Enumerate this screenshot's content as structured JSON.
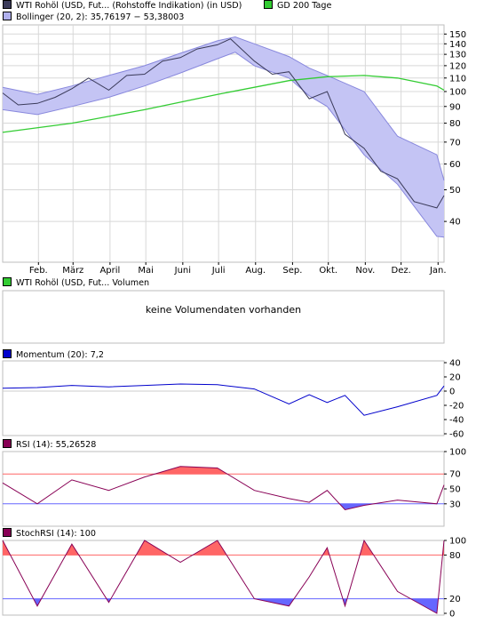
{
  "legends": {
    "price": "WTI Rohöl (USD, Fut... (Rohstoffe Indikation) (in USD)",
    "bollinger": "Bollinger (20, 2): 35,76197 − 53,38003",
    "gd200": "GD 200 Tage",
    "volume": "WTI Rohöl (USD, Fut... Volumen",
    "momentum": "Momentum (20): 7,2",
    "rsi": "RSI (14): 55,26528",
    "stochrsi": "StochRSI (14): 100"
  },
  "volume_message": "keine Volumendaten vorhanden",
  "colors": {
    "price": "#3b3b5a",
    "bollinger_fill": "#c4c4f4",
    "bollinger_line": "#8888dd",
    "gd200": "#33cc33",
    "momentum": "#0000cc",
    "oscillator": "#880055",
    "overbought": "#ff6666",
    "oversold": "#6666ff",
    "grid": "#d8d8d8"
  },
  "chart_data": [
    {
      "type": "line",
      "title": "WTI Rohöl (USD, Fut... (Rohstoffe Indikation) (in USD)",
      "y_scale": "log",
      "ylim": [
        30,
        160
      ],
      "x_months": [
        "Feb.",
        "März",
        "April",
        "Mai",
        "Juni",
        "Juli",
        "Aug.",
        "Sep.",
        "Okt.",
        "Nov.",
        "Dez.",
        "Jan."
      ],
      "y_ticks": [
        40,
        50,
        60,
        70,
        80,
        90,
        100,
        110,
        120,
        130,
        140,
        150
      ],
      "grid": true,
      "series": [
        {
          "name": "WTI Rohöl (USD, Fut... (Rohstoffe Indikation) (in USD)",
          "x": [
            "2008-01-02",
            "2008-01-15",
            "2008-01-31",
            "2008-02-15",
            "2008-02-29",
            "2008-03-14",
            "2008-03-31",
            "2008-04-15",
            "2008-04-30",
            "2008-05-15",
            "2008-05-30",
            "2008-06-13",
            "2008-06-30",
            "2008-07-11",
            "2008-07-31",
            "2008-08-15",
            "2008-08-29",
            "2008-09-15",
            "2008-09-30",
            "2008-10-15",
            "2008-10-31",
            "2008-11-14",
            "2008-11-28",
            "2008-12-12",
            "2008-12-31",
            "2009-01-06"
          ],
          "values": [
            99,
            91,
            92,
            96,
            102,
            110,
            101,
            112,
            113,
            124,
            127,
            135,
            139,
            145,
            124,
            113,
            115,
            95,
            100,
            74,
            67,
            57,
            54,
            46,
            44,
            48
          ]
        },
        {
          "name": "Bollinger upper",
          "x": [
            "2008-01-02",
            "2008-01-31",
            "2008-02-29",
            "2008-03-31",
            "2008-04-30",
            "2008-05-30",
            "2008-06-30",
            "2008-07-15",
            "2008-07-31",
            "2008-08-29",
            "2008-09-15",
            "2008-09-30",
            "2008-10-31",
            "2008-11-28",
            "2008-12-31",
            "2009-01-06"
          ],
          "values": [
            103,
            98,
            104,
            112,
            120,
            131,
            143,
            147,
            140,
            128,
            118,
            112,
            100,
            73,
            64,
            53.4
          ]
        },
        {
          "name": "Bollinger lower",
          "x": [
            "2008-01-02",
            "2008-01-31",
            "2008-02-29",
            "2008-03-31",
            "2008-04-30",
            "2008-05-30",
            "2008-06-30",
            "2008-07-15",
            "2008-07-31",
            "2008-08-29",
            "2008-09-15",
            "2008-09-30",
            "2008-10-31",
            "2008-11-28",
            "2008-12-31",
            "2009-01-06"
          ],
          "values": [
            88,
            85,
            90,
            96,
            104,
            114,
            126,
            132,
            120,
            110,
            97,
            90,
            64,
            52,
            36,
            35.8
          ]
        },
        {
          "name": "GD 200 Tage",
          "x": [
            "2008-01-02",
            "2008-02-29",
            "2008-04-30",
            "2008-06-30",
            "2008-08-29",
            "2008-09-30",
            "2008-10-31",
            "2008-11-28",
            "2008-12-31",
            "2009-01-06"
          ],
          "values": [
            75,
            80,
            88,
            98,
            108,
            111,
            112,
            110,
            104,
            101
          ]
        }
      ]
    },
    {
      "type": "line",
      "title": "Momentum (20): 7,2",
      "ylim": [
        -60,
        40
      ],
      "y_ticks": [
        -60,
        -40,
        -20,
        0,
        20,
        40
      ],
      "series": [
        {
          "name": "Momentum (20): 7,2",
          "x": [
            "2008-01-02",
            "2008-01-31",
            "2008-02-29",
            "2008-03-31",
            "2008-04-30",
            "2008-05-30",
            "2008-06-30",
            "2008-07-31",
            "2008-08-29",
            "2008-09-15",
            "2008-09-30",
            "2008-10-15",
            "2008-10-31",
            "2008-11-28",
            "2008-12-31",
            "2009-01-06"
          ],
          "values": [
            4,
            5,
            8,
            6,
            8,
            10,
            9,
            3,
            -18,
            -5,
            -16,
            -6,
            -34,
            -22,
            -6,
            7.2
          ]
        }
      ]
    },
    {
      "type": "line",
      "title": "RSI (14): 55,26528",
      "ylim": [
        0,
        100
      ],
      "y_ticks": [
        30,
        50,
        70,
        100
      ],
      "levels": [
        30,
        70
      ],
      "series": [
        {
          "name": "RSI (14): 55,26528",
          "x": [
            "2008-01-02",
            "2008-01-31",
            "2008-02-29",
            "2008-03-31",
            "2008-04-30",
            "2008-05-30",
            "2008-06-30",
            "2008-07-31",
            "2008-08-29",
            "2008-09-15",
            "2008-09-30",
            "2008-10-15",
            "2008-10-31",
            "2008-11-28",
            "2008-12-31",
            "2009-01-06"
          ],
          "values": [
            58,
            30,
            62,
            48,
            66,
            80,
            78,
            48,
            37,
            32,
            48,
            22,
            28,
            35,
            30,
            55.27
          ]
        }
      ]
    },
    {
      "type": "line",
      "title": "StochRSI (14): 100",
      "ylim": [
        0,
        100
      ],
      "y_ticks": [
        0,
        20,
        80,
        100
      ],
      "levels": [
        20,
        80
      ],
      "series": [
        {
          "name": "StochRSI (14): 100",
          "x": [
            "2008-01-02",
            "2008-01-31",
            "2008-02-29",
            "2008-03-31",
            "2008-04-30",
            "2008-05-30",
            "2008-06-30",
            "2008-07-31",
            "2008-08-29",
            "2008-09-15",
            "2008-09-30",
            "2008-10-15",
            "2008-10-31",
            "2008-11-28",
            "2008-12-31",
            "2009-01-06"
          ],
          "values": [
            100,
            10,
            95,
            15,
            100,
            70,
            100,
            20,
            10,
            50,
            90,
            10,
            100,
            30,
            0,
            100
          ]
        }
      ]
    }
  ]
}
